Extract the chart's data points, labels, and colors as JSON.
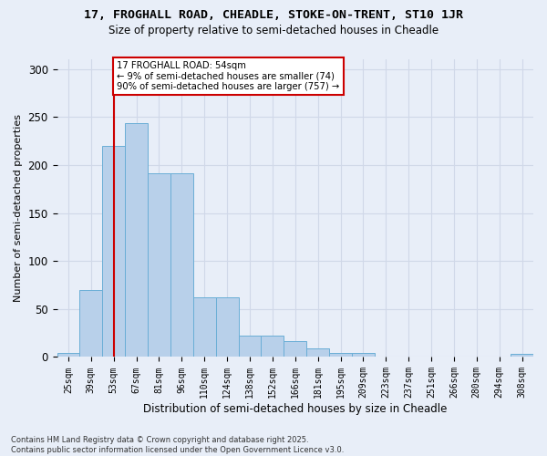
{
  "title_line1": "17, FROGHALL ROAD, CHEADLE, STOKE-ON-TRENT, ST10 1JR",
  "title_line2": "Size of property relative to semi-detached houses in Cheadle",
  "xlabel": "Distribution of semi-detached houses by size in Cheadle",
  "ylabel": "Number of semi-detached properties",
  "bar_labels": [
    "25sqm",
    "39sqm",
    "53sqm",
    "67sqm",
    "81sqm",
    "96sqm",
    "110sqm",
    "124sqm",
    "138sqm",
    "152sqm",
    "166sqm",
    "181sqm",
    "195sqm",
    "209sqm",
    "223sqm",
    "237sqm",
    "251sqm",
    "266sqm",
    "280sqm",
    "294sqm",
    "308sqm"
  ],
  "bar_values": [
    4,
    70,
    220,
    244,
    191,
    191,
    62,
    62,
    22,
    22,
    17,
    9,
    4,
    4,
    0,
    0,
    0,
    0,
    0,
    0,
    3
  ],
  "bar_color": "#b8d0ea",
  "bar_edge_color": "#6aaed6",
  "property_label": "17 FROGHALL ROAD: 54sqm",
  "pct_smaller": 9,
  "count_smaller": 74,
  "pct_larger": 90,
  "count_larger": 757,
  "vline_x_index": 2,
  "annotation_box_color": "#ffffff",
  "annotation_box_edge": "#cc0000",
  "vline_color": "#cc0000",
  "grid_color": "#d0d8e8",
  "background_color": "#e8eef8",
  "footer_line1": "Contains HM Land Registry data © Crown copyright and database right 2025.",
  "footer_line2": "Contains public sector information licensed under the Open Government Licence v3.0.",
  "ylim": [
    0,
    310
  ],
  "yticks": [
    0,
    50,
    100,
    150,
    200,
    250,
    300
  ]
}
